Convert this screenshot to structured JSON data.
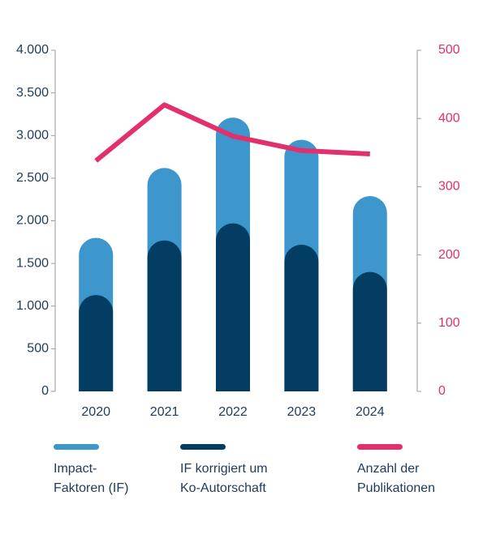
{
  "chart_data": {
    "type": "bar",
    "categories": [
      "2020",
      "2021",
      "2022",
      "2023",
      "2024"
    ],
    "series": [
      {
        "name": "Impact-\nFaktoren (IF)",
        "color": "#3d97cc",
        "values": [
          1800,
          2620,
          3210,
          2950,
          2290
        ]
      },
      {
        "name": "IF korrigiert um\nKo-Autorschaft",
        "color": "#033d63",
        "values": [
          1130,
          1770,
          1970,
          1720,
          1400
        ]
      },
      {
        "name": "Anzahl der\nPublikationen",
        "color": "#e2306d",
        "type": "line",
        "axis": "y2",
        "values": [
          338,
          420,
          374,
          353,
          348
        ]
      }
    ],
    "ylim": [
      0,
      4000
    ],
    "yticks": [
      0,
      500,
      {
        "value": 1000,
        "label": "1.000"
      },
      {
        "value": 1500,
        "label": "1.500"
      },
      {
        "value": 2000,
        "label": "2.000"
      },
      {
        "value": 2500,
        "label": "2.500"
      },
      {
        "value": 3000,
        "label": "3.000"
      },
      {
        "value": 3500,
        "label": "3.500"
      },
      {
        "value": 4000,
        "label": "4.000"
      }
    ],
    "y2lim": [
      0,
      500
    ],
    "y2ticks": [
      0,
      100,
      200,
      300,
      400,
      500
    ],
    "legend": "bottom"
  }
}
